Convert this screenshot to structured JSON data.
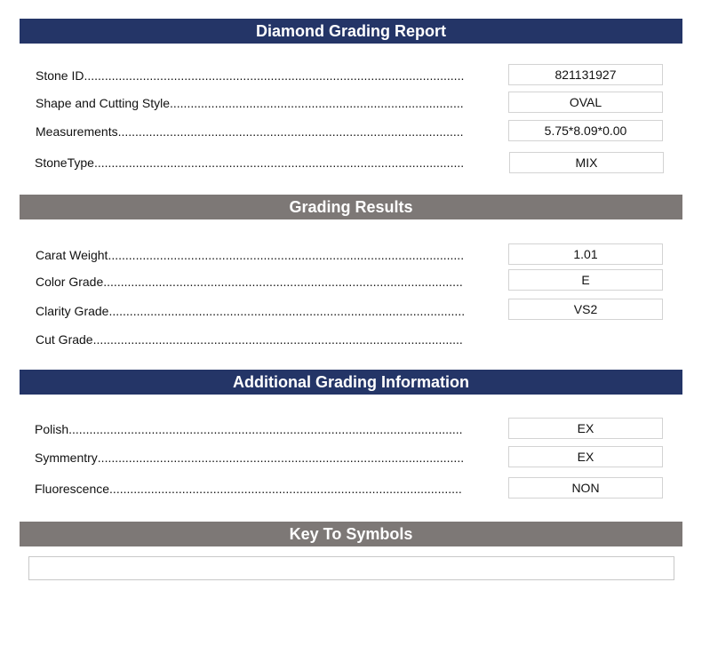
{
  "sections": {
    "report": {
      "title": "Diamond Grading Report",
      "rows": [
        {
          "label": "Stone ID",
          "value": "821131927"
        },
        {
          "label": "Shape and Cutting Style",
          "value": "OVAL"
        },
        {
          "label": "Measurements",
          "value": "5.75*8.09*0.00"
        },
        {
          "label": "StoneType",
          "value": "MIX"
        }
      ]
    },
    "grading": {
      "title": "Grading Results",
      "rows": [
        {
          "label": "Carat Weight",
          "value": "1.01"
        },
        {
          "label": "Color Grade",
          "value": "E"
        },
        {
          "label": "Clarity Grade",
          "value": "VS2"
        },
        {
          "label": "Cut Grade",
          "value": ""
        }
      ]
    },
    "additional": {
      "title": "Additional Grading Information",
      "rows": [
        {
          "label": "Polish",
          "value": "EX"
        },
        {
          "label": "Symmentry",
          "value": "EX"
        },
        {
          "label": "Fluorescence",
          "value": "NON"
        }
      ]
    },
    "key": {
      "title": "Key To Symbols",
      "value": ""
    }
  },
  "colors": {
    "navy_header": "#243567",
    "gray_header": "#7d7876"
  }
}
